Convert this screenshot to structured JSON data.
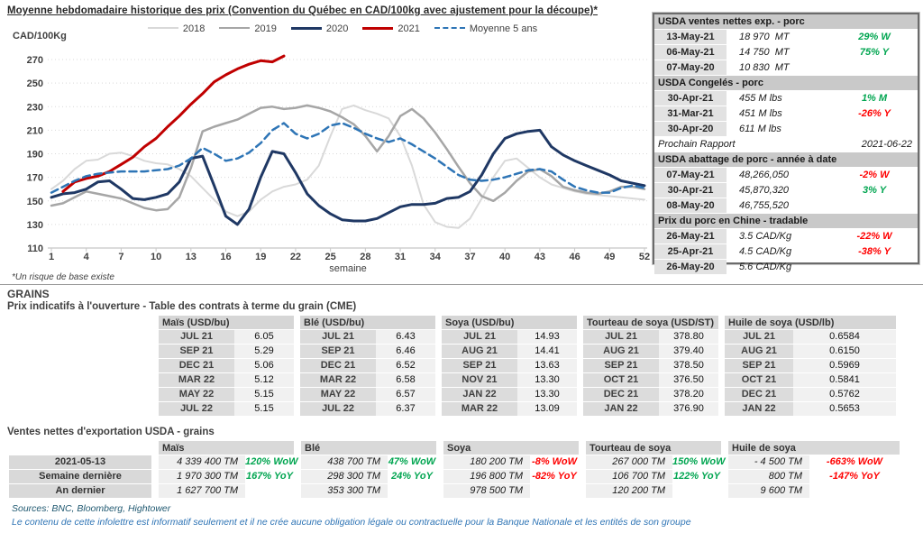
{
  "header": {
    "title": "Moyenne hebdomadaire historique des prix (Convention du Québec en CAD/100kg avec ajustement pour la découpe)*"
  },
  "chart_footnote": "*Un risque de base existe",
  "chart_data": {
    "type": "line",
    "title": "Moyenne hebdomadaire historique des prix (Convention du Québec en CAD/100kg avec ajustement pour la découpe)*",
    "xlabel": "semaine",
    "ylabel": "CAD/100Kg",
    "ylim": [
      110,
      270
    ],
    "ytick_step": 20,
    "xticks": [
      1,
      4,
      7,
      10,
      13,
      16,
      19,
      22,
      25,
      28,
      31,
      34,
      37,
      40,
      43,
      46,
      49,
      52
    ],
    "x_range": [
      1,
      52
    ],
    "grid": true,
    "legend_position": "top",
    "series": [
      {
        "name": "2018",
        "color": "#d9d9d9",
        "style": "solid",
        "width": 2,
        "values": [
          160,
          167,
          177,
          184,
          185,
          190,
          191,
          188,
          184,
          182,
          181,
          177,
          171,
          161,
          151,
          141,
          137,
          141,
          151,
          158,
          162,
          164,
          168,
          180,
          205,
          228,
          231,
          227,
          224,
          220,
          205,
          180,
          147,
          132,
          128,
          127,
          135,
          152,
          170,
          184,
          186,
          178,
          170,
          164,
          161,
          158,
          156,
          155,
          154,
          153,
          152,
          151
        ]
      },
      {
        "name": "2019",
        "color": "#a6a6a6",
        "style": "solid",
        "width": 2.5,
        "values": [
          146,
          148,
          153,
          158,
          156,
          154,
          152,
          148,
          144,
          142,
          143,
          153,
          178,
          209,
          213,
          216,
          219,
          224,
          229,
          230,
          228,
          229,
          231,
          229,
          226,
          221,
          215,
          205,
          192,
          205,
          222,
          228,
          220,
          208,
          194,
          179,
          165,
          154,
          150,
          157,
          167,
          175,
          177,
          171,
          162,
          159,
          157,
          156,
          158,
          162,
          162,
          160
        ]
      },
      {
        "name": "2020",
        "color": "#1f3864",
        "style": "solid",
        "width": 3,
        "values": [
          153,
          156,
          157,
          160,
          166,
          167,
          160,
          152,
          151,
          153,
          156,
          166,
          186,
          188,
          163,
          137,
          130,
          143,
          170,
          192,
          190,
          174,
          156,
          146,
          139,
          134,
          133,
          133,
          135,
          140,
          145,
          147,
          147,
          148,
          152,
          153,
          158,
          172,
          190,
          203,
          207,
          209,
          210,
          196,
          189,
          184,
          180,
          176,
          172,
          167,
          165,
          163
        ]
      },
      {
        "name": "2021",
        "color": "#c00000",
        "style": "solid",
        "width": 3,
        "values": [
          null,
          158,
          166,
          169,
          171,
          175,
          181,
          187,
          196,
          203,
          213,
          222,
          232,
          241,
          251,
          257,
          262,
          266,
          269,
          268,
          273,
          null,
          null,
          null,
          null,
          null,
          null,
          null,
          null,
          null,
          null,
          null,
          null,
          null,
          null,
          null,
          null,
          null,
          null,
          null,
          null,
          null,
          null,
          null,
          null,
          null,
          null,
          null,
          null,
          null,
          null,
          null
        ]
      },
      {
        "name": "Moyenne 5 ans",
        "color": "#2e75b6",
        "style": "dashed",
        "width": 2.5,
        "values": [
          157,
          162,
          167,
          171,
          173,
          174,
          175,
          175,
          175,
          176,
          177,
          180,
          186,
          195,
          190,
          184,
          186,
          191,
          199,
          210,
          216,
          207,
          203,
          207,
          214,
          216,
          212,
          207,
          203,
          200,
          203,
          198,
          192,
          186,
          179,
          172,
          168,
          167,
          168,
          170,
          173,
          176,
          177,
          175,
          168,
          162,
          159,
          157,
          157,
          161,
          163,
          161
        ]
      }
    ]
  },
  "usda_panel": {
    "sections": [
      {
        "header": "USDA ventes nettes exp. - porc",
        "rows": [
          {
            "date": "13-May-21",
            "value": "18 970  MT",
            "pct": "29% W",
            "trend": "up"
          },
          {
            "date": "06-May-21",
            "value": "14 750  MT",
            "pct": "75% Y",
            "trend": "up"
          },
          {
            "date": "07-May-20",
            "value": "10 830  MT",
            "pct": "",
            "trend": ""
          }
        ]
      },
      {
        "header": "USDA Congelés - porc",
        "rows": [
          {
            "date": "30-Apr-21",
            "value": "455 M lbs",
            "pct": "1% M",
            "trend": "up"
          },
          {
            "date": "31-Mar-21",
            "value": "451 M lbs",
            "pct": "-26% Y",
            "trend": "down"
          },
          {
            "date": "30-Apr-20",
            "value": "611 M lbs",
            "pct": "",
            "trend": ""
          }
        ]
      },
      {
        "type": "note",
        "label": "Prochain Rapport",
        "value": "2021-06-22"
      },
      {
        "header": "USDA abattage de porc - année à date",
        "rows": [
          {
            "date": "07-May-21",
            "value": "48,266,050",
            "pct": "-2% W",
            "trend": "down"
          },
          {
            "date": "30-Apr-21",
            "value": "45,870,320",
            "pct": "3% Y",
            "trend": "up"
          },
          {
            "date": "08-May-20",
            "value": "46,755,520",
            "pct": "",
            "trend": ""
          }
        ]
      },
      {
        "header": "Prix du porc en Chine - tradable",
        "rows": [
          {
            "date": "26-May-21",
            "value": "3.5 CAD/Kg",
            "pct": "-22% W",
            "trend": "down"
          },
          {
            "date": "25-Apr-21",
            "value": "4.5 CAD/Kg",
            "pct": "-38% Y",
            "trend": "down"
          },
          {
            "date": "26-May-20",
            "value": "5.6 CAD/Kg",
            "pct": "",
            "trend": ""
          }
        ]
      }
    ]
  },
  "grains": {
    "section_title": "GRAINS",
    "cme_title": "Prix indicatifs à l'ouverture - Table des contrats à terme du grain (CME)",
    "cme_table": {
      "groups": [
        {
          "header": "Maïs (USD/bu)",
          "rows": [
            [
              "JUL 21",
              "6.05"
            ],
            [
              "SEP 21",
              "5.29"
            ],
            [
              "DEC 21",
              "5.06"
            ],
            [
              "MAR 22",
              "5.12"
            ],
            [
              "MAY 22",
              "5.15"
            ],
            [
              "JUL 22",
              "5.15"
            ]
          ]
        },
        {
          "header": "Blé (USD/bu)",
          "rows": [
            [
              "JUL 21",
              "6.43"
            ],
            [
              "SEP 21",
              "6.46"
            ],
            [
              "DEC 21",
              "6.52"
            ],
            [
              "MAR 22",
              "6.58"
            ],
            [
              "MAY 22",
              "6.57"
            ],
            [
              "JUL 22",
              "6.37"
            ]
          ]
        },
        {
          "header": "Soya (USD/bu)",
          "rows": [
            [
              "JUL 21",
              "14.93"
            ],
            [
              "AUG 21",
              "14.41"
            ],
            [
              "SEP 21",
              "13.63"
            ],
            [
              "NOV 21",
              "13.30"
            ],
            [
              "JAN 22",
              "13.30"
            ],
            [
              "MAR 22",
              "13.09"
            ]
          ]
        },
        {
          "header": "Tourteau de soya (USD/ST)",
          "rows": [
            [
              "JUL 21",
              "378.80"
            ],
            [
              "AUG 21",
              "379.40"
            ],
            [
              "SEP 21",
              "378.50"
            ],
            [
              "OCT 21",
              "376.50"
            ],
            [
              "DEC 21",
              "378.20"
            ],
            [
              "JAN 22",
              "376.90"
            ]
          ]
        },
        {
          "header": "Huile de soya (USD/lb)",
          "wide": true,
          "rows": [
            [
              "JUL 21",
              "0.6584"
            ],
            [
              "AUG 21",
              "0.6150"
            ],
            [
              "SEP 21",
              "0.5969"
            ],
            [
              "OCT 21",
              "0.5841"
            ],
            [
              "DEC 21",
              "0.5762"
            ],
            [
              "JAN 22",
              "0.5653"
            ]
          ]
        }
      ]
    },
    "export_title": "Ventes nettes d'exportation USDA - grains",
    "export_table": {
      "row_labels": [
        "2021-05-13",
        "Semaine dernière",
        "An dernier"
      ],
      "groups": [
        {
          "header": "Maïs",
          "cells": [
            [
              "4 339 400 TM",
              "120% WoW",
              "up"
            ],
            [
              "1 970 300 TM",
              "167% YoY",
              "up"
            ],
            [
              "1 627 700 TM",
              "",
              ""
            ]
          ]
        },
        {
          "header": "Blé",
          "cells": [
            [
              "438 700 TM",
              "47% WoW",
              "up"
            ],
            [
              "298 300 TM",
              "24% YoY",
              "up"
            ],
            [
              "353 300 TM",
              "",
              ""
            ]
          ]
        },
        {
          "header": "Soya",
          "cells": [
            [
              "180 200 TM",
              "-8% WoW",
              "down"
            ],
            [
              "196 800 TM",
              "-82% YoY",
              "down"
            ],
            [
              "978 500 TM",
              "",
              ""
            ]
          ]
        },
        {
          "header": "Tourteau de soya",
          "cells": [
            [
              "267 000 TM",
              "150% WoW",
              "up"
            ],
            [
              "106 700 TM",
              "122% YoY",
              "up"
            ],
            [
              "120 200 TM",
              "",
              ""
            ]
          ]
        },
        {
          "header": "Huile de soya",
          "wide": true,
          "cells": [
            [
              "- 4 500 TM",
              "-663% WoW",
              "down"
            ],
            [
              "800 TM",
              "-147% YoY",
              "down"
            ],
            [
              "9 600 TM",
              "",
              ""
            ]
          ]
        }
      ]
    }
  },
  "footer": {
    "sources": "Sources: BNC, Bloomberg, Hightower",
    "disclaimer": "Le contenu de cette infolettre est informatif seulement et il ne crée aucune obligation légale ou contractuelle pour la Banque Nationale et les entités de son groupe"
  },
  "colors": {
    "up": "#00a550",
    "down": "#ff0000",
    "grid": "#d9d9d9",
    "axis": "#c8c8c8",
    "tick_text": "#404040"
  }
}
